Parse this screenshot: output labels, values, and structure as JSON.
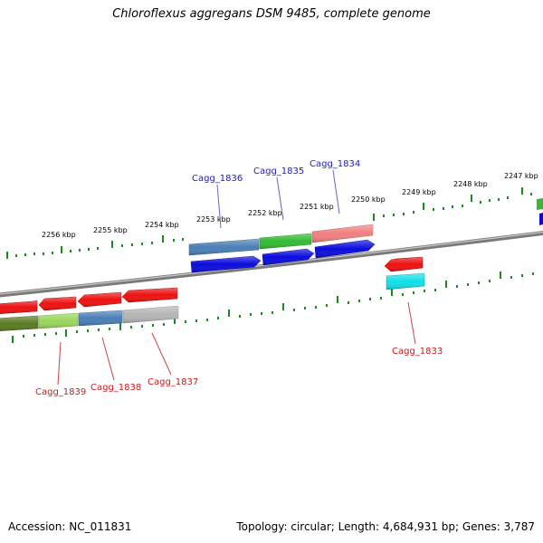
{
  "title": "Chloroflexus aggregans DSM 9485, complete genome",
  "accession": "Accession: NC_011831",
  "summary": "Topology: circular; Length: 4,684,931 bp; Genes: 3,787",
  "colors": {
    "backbone": "#7a7a7a",
    "ticks": "#1a8a1a",
    "top_label": "#1a1acc",
    "bottom_label": "#cc1a1a",
    "leader": "#6666cc"
  },
  "position_labels": [
    "2256 kbp",
    "2255 kbp",
    "2254 kbp",
    "2253 kbp",
    "2252 kbp",
    "2251 kbp",
    "2250 kbp",
    "2249 kbp",
    "2248 kbp",
    "2247 kbp"
  ],
  "top_genes": [
    "Cagg_1836",
    "Cagg_1835",
    "Cagg_1834"
  ],
  "bottom_genes": [
    "Cagg_1839",
    "Cagg_1838",
    "Cagg_1837",
    "Cagg_1833"
  ]
}
